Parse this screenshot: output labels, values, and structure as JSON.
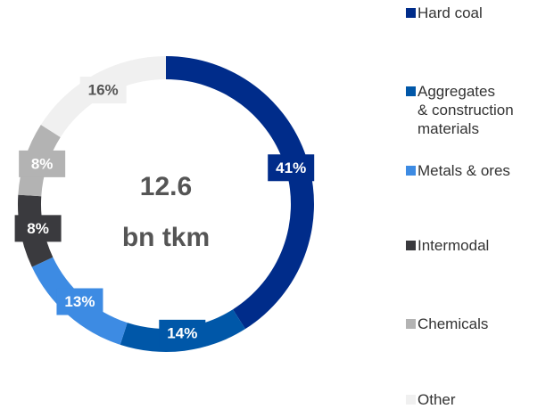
{
  "chart_data": {
    "type": "donut",
    "center_text": [
      "12.6",
      "bn tkm"
    ],
    "categories": [
      "Hard coal",
      "Aggregates\n& construction\nmaterials",
      "Metals & ores",
      "Intermodal",
      "Chemicals",
      "Other"
    ],
    "values": [
      41,
      14,
      13,
      8,
      8,
      16
    ],
    "value_labels": [
      "41%",
      "14%",
      "13%",
      "8%",
      "8%",
      "16%"
    ],
    "colors": [
      "#002c8a",
      "#0057a8",
      "#3d8be3",
      "#3a3a3e",
      "#b3b3b3",
      "#f0f0f0"
    ],
    "legend": "right"
  }
}
